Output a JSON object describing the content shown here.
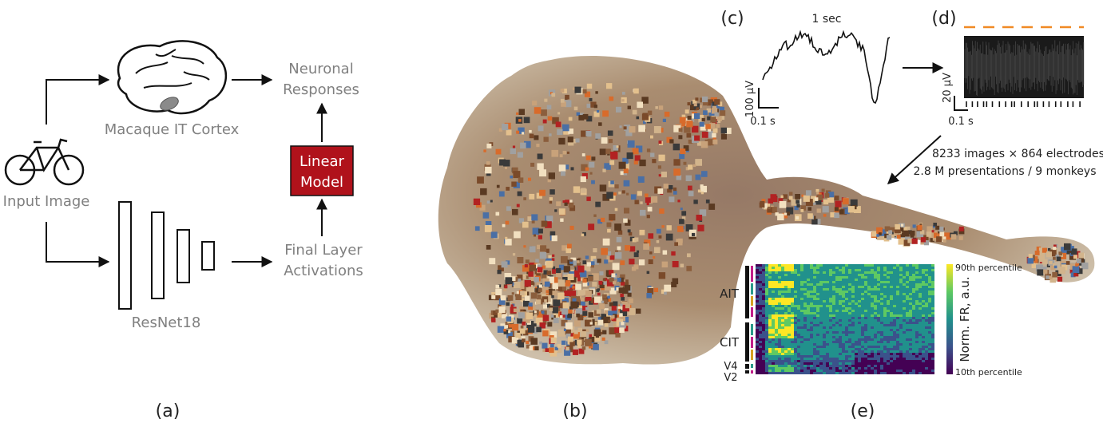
{
  "panel_a": {
    "input_label": "Input Image",
    "cortex_label": "Macaque IT Cortex",
    "responses_line1": "Neuronal",
    "responses_line2": "Responses",
    "model_line1": "Linear",
    "model_line2": "Model",
    "activations_line1": "Final Layer",
    "activations_line2": "Activations",
    "network_label": "ResNet18",
    "accent_color": "#b0121b"
  },
  "panel_c": {
    "time_label": "1 sec",
    "scale_voltage": "100 µV",
    "scale_time": "0.1 s"
  },
  "panel_d": {
    "scale_voltage": "20 µV",
    "scale_time": "0.1 s",
    "threshold_color": "#f08a24"
  },
  "dataset": {
    "line1": "8233 images × 864 electrodes",
    "line2": "2.8 M presentations / 9 monkeys"
  },
  "panel_e": {
    "regions": [
      "AIT",
      "CIT",
      "V4",
      "V2"
    ],
    "colorbar_max": "90th percentile",
    "colorbar_min": "10th percentile",
    "colorbar_label": "Norm. FR, a.u.",
    "colormap": [
      "#440154",
      "#3b528b",
      "#21918c",
      "#5ec962",
      "#fde725"
    ]
  },
  "panel_labels": [
    "(a)",
    "(b)",
    "(c)",
    "(d)",
    "(e)"
  ]
}
